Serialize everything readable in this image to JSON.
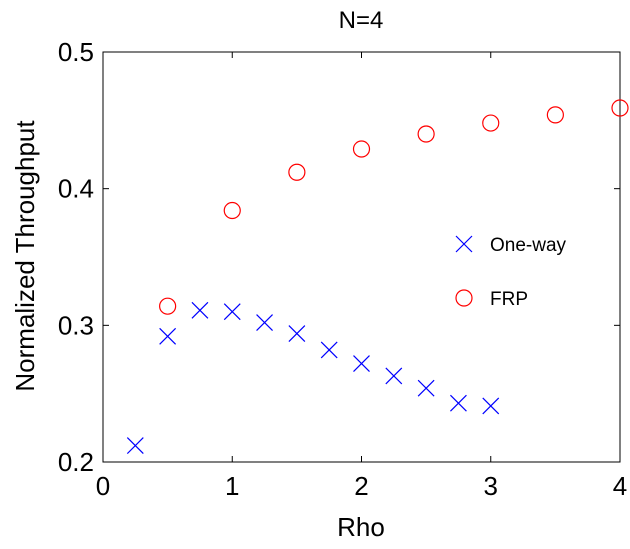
{
  "chart_data": {
    "type": "scatter",
    "title": "N=4",
    "xlabel": "Rho",
    "ylabel": "Normalized Throughput",
    "xlim": [
      0,
      4
    ],
    "ylim": [
      0.2,
      0.5
    ],
    "xticks": [
      0,
      1,
      2,
      3,
      4
    ],
    "xtick_labels": [
      "0",
      "1",
      "2",
      "3",
      "4"
    ],
    "yticks": [
      0.2,
      0.3,
      0.4,
      0.5
    ],
    "ytick_labels": [
      "0.2",
      "0.3",
      "0.4",
      "0.5"
    ],
    "grid": false,
    "legend_position": "inside-right",
    "series": [
      {
        "name": "One-way",
        "marker": "x",
        "color": "#0000ff",
        "x": [
          0.25,
          0.5,
          0.75,
          1.0,
          1.25,
          1.5,
          1.75,
          2.0,
          2.25,
          2.5,
          2.75,
          3.0
        ],
        "y": [
          0.212,
          0.292,
          0.311,
          0.31,
          0.302,
          0.294,
          0.282,
          0.272,
          0.263,
          0.254,
          0.243,
          0.241
        ]
      },
      {
        "name": "FRP",
        "marker": "o",
        "color": "#ff0000",
        "x": [
          0.5,
          1.0,
          1.5,
          2.0,
          2.5,
          3.0,
          3.5,
          4.0
        ],
        "y": [
          0.314,
          0.384,
          0.412,
          0.429,
          0.44,
          0.448,
          0.454,
          0.459
        ]
      }
    ]
  }
}
